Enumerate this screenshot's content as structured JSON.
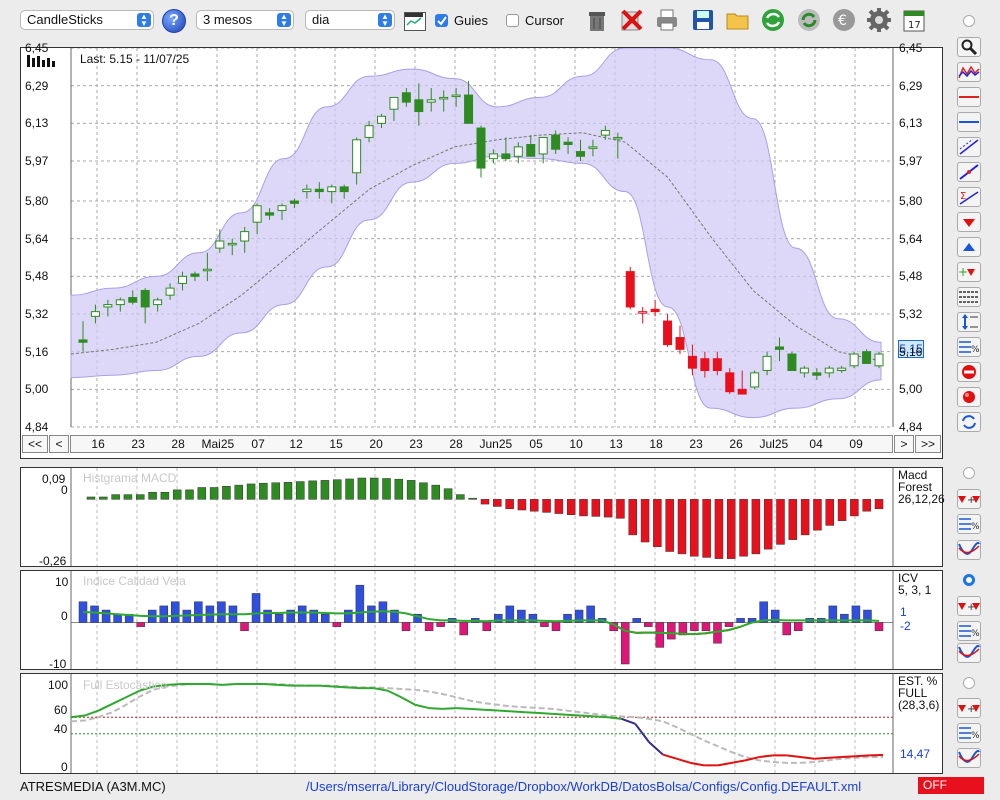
{
  "toolbar": {
    "chart_type": "CandleSticks",
    "period": "3 mesos",
    "interval": "dia",
    "guides_label": "Guies",
    "guides_checked": true,
    "cursor_label": "Cursor",
    "cursor_checked": false,
    "help": "?",
    "calendar_day": "17"
  },
  "main_chart": {
    "last_label": "Last: 5.15 - 11/07/25",
    "y_ticks": [
      "6,45",
      "6,29",
      "6,13",
      "5,97",
      "5,80",
      "5,64",
      "5,48",
      "5,32",
      "5,16",
      "5,00",
      "4,84"
    ],
    "last_value_badge": "5,15",
    "x_ticks": [
      "16",
      "23",
      "28",
      "Mai25",
      "07",
      "12",
      "15",
      "20",
      "23",
      "28",
      "Jun25",
      "05",
      "10",
      "13",
      "18",
      "23",
      "26",
      "Jul25",
      "04",
      "09"
    ],
    "nav": {
      "first": "<<",
      "prev": "<",
      "next": ">",
      "last": ">>"
    }
  },
  "macd_panel": {
    "ghost_title": "Histgrama MACD",
    "y_ticks": [
      "0,09",
      "0",
      "-0,26"
    ],
    "legend": [
      "Macd",
      "Forest",
      "26,12,26"
    ]
  },
  "icv_panel": {
    "ghost_title": "Indice Calidad Vela",
    "y_ticks": [
      "10",
      "0",
      "-10"
    ],
    "legend": [
      "ICV",
      "5, 3, 1"
    ],
    "value_1": "1",
    "value_2": "-2"
  },
  "stoch_panel": {
    "ghost_title": "Full Estocástico",
    "y_ticks": [
      "100",
      "60",
      "40",
      "0"
    ],
    "legend": [
      "EST. %",
      "FULL",
      "(28,3,6)"
    ],
    "value": "14,47"
  },
  "status": {
    "ticker": "ATRESMEDIA (A3M.MC)",
    "path": "/Users/mserra/Library/CloudStorage/Dropbox/WorkDB/DatosBolsa/Configs/Config.DEFAULT.xml",
    "off_label": "OFF"
  },
  "colors": {
    "up": "#2e8b22",
    "down": "#e8101c",
    "band": "#cfc8f4",
    "accent": "#2f7be8"
  },
  "chart_data": [
    {
      "type": "candlestick",
      "ylim": [
        4.84,
        6.45
      ],
      "candles": [
        [
          5.21,
          5.29,
          5.16,
          5.2
        ],
        [
          5.31,
          5.36,
          5.28,
          5.33
        ],
        [
          5.35,
          5.38,
          5.31,
          5.36
        ],
        [
          5.36,
          5.39,
          5.33,
          5.38
        ],
        [
          5.39,
          5.42,
          5.36,
          5.37
        ],
        [
          5.42,
          5.43,
          5.28,
          5.35
        ],
        [
          5.36,
          5.39,
          5.33,
          5.38
        ],
        [
          5.4,
          5.45,
          5.38,
          5.43
        ],
        [
          5.45,
          5.5,
          5.42,
          5.48
        ],
        [
          5.49,
          5.5,
          5.46,
          5.48
        ],
        [
          5.51,
          5.58,
          5.46,
          5.51
        ],
        [
          5.6,
          5.68,
          5.58,
          5.63
        ],
        [
          5.62,
          5.64,
          5.57,
          5.62
        ],
        [
          5.63,
          5.69,
          5.58,
          5.67
        ],
        [
          5.71,
          5.79,
          5.66,
          5.78
        ],
        [
          5.75,
          5.77,
          5.72,
          5.74
        ],
        [
          5.76,
          5.79,
          5.72,
          5.78
        ],
        [
          5.8,
          5.81,
          5.77,
          5.79
        ],
        [
          5.84,
          5.87,
          5.81,
          5.85
        ],
        [
          5.85,
          5.88,
          5.81,
          5.84
        ],
        [
          5.84,
          5.87,
          5.79,
          5.86
        ],
        [
          5.86,
          5.87,
          5.81,
          5.84
        ],
        [
          5.92,
          6.07,
          5.87,
          6.06
        ],
        [
          6.07,
          6.14,
          6.05,
          6.12
        ],
        [
          6.13,
          6.17,
          6.11,
          6.16
        ],
        [
          6.19,
          6.23,
          6.14,
          6.24
        ],
        [
          6.26,
          6.28,
          6.2,
          6.22
        ],
        [
          6.23,
          6.3,
          6.12,
          6.18
        ],
        [
          6.22,
          6.28,
          6.18,
          6.23
        ],
        [
          6.24,
          6.27,
          6.18,
          6.24
        ],
        [
          6.25,
          6.28,
          6.2,
          6.25
        ],
        [
          6.25,
          6.31,
          6.13,
          6.13
        ],
        [
          6.11,
          6.12,
          5.9,
          5.94
        ],
        [
          5.98,
          6.02,
          5.96,
          6.0
        ],
        [
          6.0,
          6.07,
          5.97,
          5.98
        ],
        [
          5.99,
          6.05,
          5.96,
          6.03
        ],
        [
          6.04,
          6.08,
          5.99,
          5.99
        ],
        [
          6.0,
          6.07,
          5.96,
          6.07
        ],
        [
          6.08,
          6.1,
          6.0,
          6.02
        ],
        [
          6.05,
          6.07,
          6.0,
          6.04
        ],
        [
          6.01,
          6.06,
          5.97,
          5.99
        ],
        [
          6.03,
          6.06,
          5.99,
          6.03
        ],
        [
          6.08,
          6.12,
          6.06,
          6.1
        ],
        [
          6.07,
          6.09,
          5.98,
          6.07
        ],
        [
          5.5,
          5.52,
          5.34,
          5.35
        ],
        [
          5.33,
          5.35,
          5.28,
          5.33
        ],
        [
          5.34,
          5.38,
          5.31,
          5.33
        ],
        [
          5.29,
          5.32,
          5.18,
          5.19
        ],
        [
          5.22,
          5.27,
          5.15,
          5.17
        ],
        [
          5.14,
          5.19,
          5.06,
          5.09
        ],
        [
          5.13,
          5.16,
          5.05,
          5.08
        ],
        [
          5.13,
          5.16,
          5.06,
          5.08
        ],
        [
          5.07,
          5.09,
          4.98,
          4.99
        ],
        [
          5.0,
          5.08,
          4.98,
          4.98
        ],
        [
          5.01,
          5.08,
          5.0,
          5.07
        ],
        [
          5.08,
          5.16,
          5.06,
          5.14
        ],
        [
          5.18,
          5.22,
          5.12,
          5.17
        ],
        [
          5.15,
          5.16,
          5.08,
          5.08
        ],
        [
          5.07,
          5.1,
          5.05,
          5.09
        ],
        [
          5.07,
          5.09,
          5.04,
          5.06
        ],
        [
          5.07,
          5.1,
          5.05,
          5.09
        ],
        [
          5.08,
          5.1,
          5.07,
          5.09
        ],
        [
          5.1,
          5.16,
          5.09,
          5.15
        ],
        [
          5.16,
          5.17,
          5.11,
          5.11
        ],
        [
          5.1,
          5.16,
          5.09,
          5.15
        ]
      ],
      "band_upper": [
        5.4,
        5.43,
        5.48,
        5.58,
        5.75,
        5.98,
        6.2,
        6.33,
        6.36,
        6.32,
        6.2,
        6.24,
        6.33,
        6.45,
        6.45,
        6.4,
        6.15,
        5.6,
        5.3,
        5.2
      ],
      "band_lower": [
        5.05,
        5.06,
        5.08,
        5.14,
        5.24,
        5.36,
        5.52,
        5.72,
        5.88,
        5.96,
        5.99,
        5.98,
        5.96,
        5.84,
        5.35,
        4.92,
        4.88,
        4.92,
        4.96,
        5.04
      ],
      "band_mid": [
        5.15,
        5.17,
        5.2,
        5.28,
        5.4,
        5.55,
        5.7,
        5.85,
        5.95,
        6.03,
        6.06,
        6.08,
        6.09,
        6.05,
        5.9,
        5.65,
        5.42,
        5.27,
        5.16,
        5.12
      ]
    },
    {
      "type": "bar",
      "name": "MACD histogram",
      "ylim": [
        -0.26,
        0.09
      ],
      "values": [
        0.01,
        0.01,
        0.02,
        0.02,
        0.02,
        0.03,
        0.03,
        0.04,
        0.04,
        0.05,
        0.05,
        0.055,
        0.06,
        0.065,
        0.068,
        0.07,
        0.072,
        0.075,
        0.078,
        0.08,
        0.083,
        0.086,
        0.09,
        0.09,
        0.088,
        0.085,
        0.08,
        0.07,
        0.06,
        0.045,
        0.02,
        0.005,
        -0.02,
        -0.03,
        -0.04,
        -0.045,
        -0.05,
        -0.055,
        -0.06,
        -0.065,
        -0.07,
        -0.072,
        -0.075,
        -0.08,
        -0.15,
        -0.18,
        -0.2,
        -0.22,
        -0.23,
        -0.24,
        -0.245,
        -0.25,
        -0.25,
        -0.24,
        -0.23,
        -0.21,
        -0.19,
        -0.17,
        -0.15,
        -0.13,
        -0.11,
        -0.09,
        -0.07,
        -0.05,
        -0.04
      ]
    },
    {
      "type": "bar",
      "name": "ICV",
      "ylim": [
        -10,
        10
      ],
      "values": [
        5,
        4,
        3,
        2,
        2,
        -1,
        3,
        4,
        5,
        3,
        5,
        4,
        5,
        4,
        -2,
        7,
        3,
        2,
        3,
        4,
        3,
        2,
        -1,
        3,
        9,
        4,
        5,
        3,
        -2,
        2,
        -2,
        -1,
        1,
        -3,
        1,
        -2,
        2,
        4,
        3,
        2,
        -1,
        -2,
        2,
        3,
        4,
        1,
        -2,
        -10,
        1,
        -1,
        -6,
        -4,
        -3,
        -2,
        -2,
        -5,
        -1,
        1,
        1,
        5,
        3,
        -3,
        -2,
        1,
        1,
        4,
        2,
        4,
        3,
        -2
      ],
      "signal": [
        2.5,
        2.4,
        2.2,
        2.0,
        1.8,
        1.6,
        1.5,
        1.5,
        1.6,
        1.7,
        1.8,
        1.9,
        2.0,
        2.0,
        2.0,
        2.2,
        2.3,
        2.3,
        2.4,
        2.4,
        2.4,
        2.3,
        2.2,
        2.2,
        2.4,
        2.6,
        2.7,
        2.6,
        2.2,
        1.5,
        0.8,
        0.5,
        0.5,
        0.4,
        0.4,
        0.3,
        0.5,
        0.5,
        0.5,
        0.5,
        0.4,
        0.3,
        0.4,
        0.5,
        0.5,
        0.5,
        -0.5,
        -2.0,
        -2.5,
        -2.4,
        -2.5,
        -2.6,
        -2.7,
        -2.8,
        -2.6,
        -2.2,
        -1.8,
        -1.0,
        0,
        0.5,
        0.6,
        0.5,
        0.5,
        0.5,
        0.5,
        0.5,
        0.5,
        0.5,
        0.5,
        0.4
      ]
    },
    {
      "type": "line",
      "name": "Full Estocástico",
      "ylim": [
        0,
        100
      ],
      "values": [
        60,
        62,
        68,
        76,
        84,
        92,
        97,
        99,
        100,
        100,
        100,
        99,
        100,
        100,
        100,
        99,
        98,
        98,
        98,
        97,
        96,
        95,
        95,
        92,
        84,
        75,
        71,
        70,
        71,
        70,
        69,
        68,
        67,
        66,
        65,
        64,
        63,
        62,
        61,
        60,
        58,
        52,
        30,
        15,
        10,
        5,
        2,
        2,
        5,
        8,
        12,
        14,
        14,
        12,
        10,
        11,
        12,
        13,
        14,
        14.47
      ],
      "signal": [
        55,
        56,
        60,
        66,
        75,
        85,
        93,
        97,
        99,
        100,
        100,
        99,
        100,
        100,
        100,
        100,
        99,
        98,
        98,
        98,
        97,
        96,
        96,
        95,
        94,
        93,
        91,
        88,
        84,
        80,
        77,
        75,
        73,
        72,
        71,
        70,
        68,
        66,
        64,
        62,
        61,
        60,
        58,
        55,
        48,
        40,
        32,
        25,
        18,
        12,
        8,
        6,
        5,
        5,
        6,
        8,
        10,
        11,
        12,
        12
      ]
    }
  ]
}
